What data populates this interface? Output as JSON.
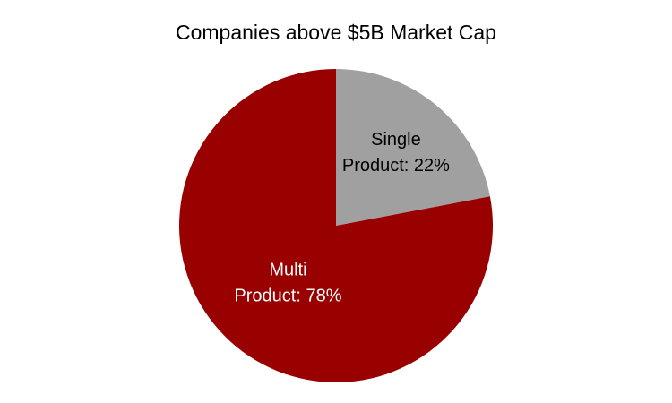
{
  "chart_data": {
    "type": "pie",
    "title": "Companies above $5B Market Cap",
    "values": [
      22,
      78
    ],
    "value_labels": [
      "Single Product: 22%",
      "Multi Product: 78%"
    ],
    "colors": [
      "#a0a0a0",
      "#990000"
    ]
  }
}
